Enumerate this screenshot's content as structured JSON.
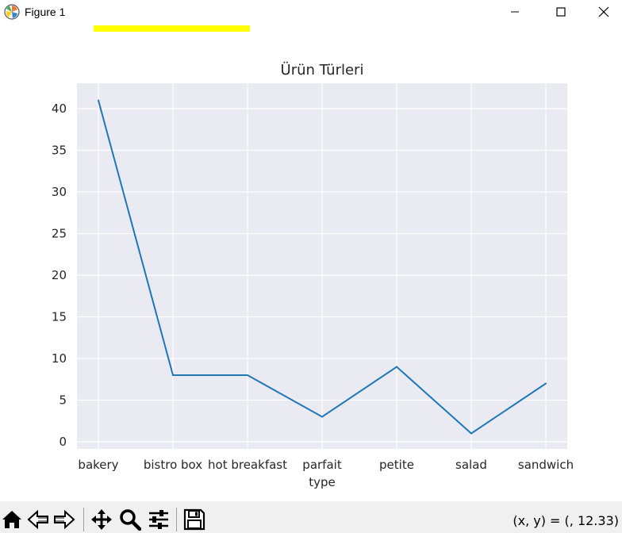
{
  "window": {
    "title": "Figure 1",
    "controls": [
      "minimize",
      "maximize",
      "close"
    ]
  },
  "chart_data": {
    "type": "line",
    "title": "Ürün Türleri",
    "xlabel": "type",
    "ylabel": "",
    "categories": [
      "bakery",
      "bistro box",
      "hot breakfast",
      "parfait",
      "petite",
      "salad",
      "sandwich"
    ],
    "values": [
      41,
      8,
      8,
      3,
      9,
      1,
      7
    ],
    "ylim": [
      -0.9,
      43.2
    ],
    "yticks": [
      0,
      5,
      10,
      15,
      20,
      25,
      30,
      35,
      40
    ],
    "grid": true,
    "legend": "none",
    "colors": {
      "line": "#1f77b4",
      "plot_background": "#eaeaf2",
      "grid": "#ffffff",
      "highlight": "#ffff00"
    }
  },
  "toolbar": {
    "buttons": [
      "home-icon",
      "back-icon",
      "forward-icon",
      "pan-icon",
      "zoom-icon",
      "configure-subplots-icon",
      "save-icon"
    ],
    "coords": "(x, y) = (, 12.33)"
  }
}
